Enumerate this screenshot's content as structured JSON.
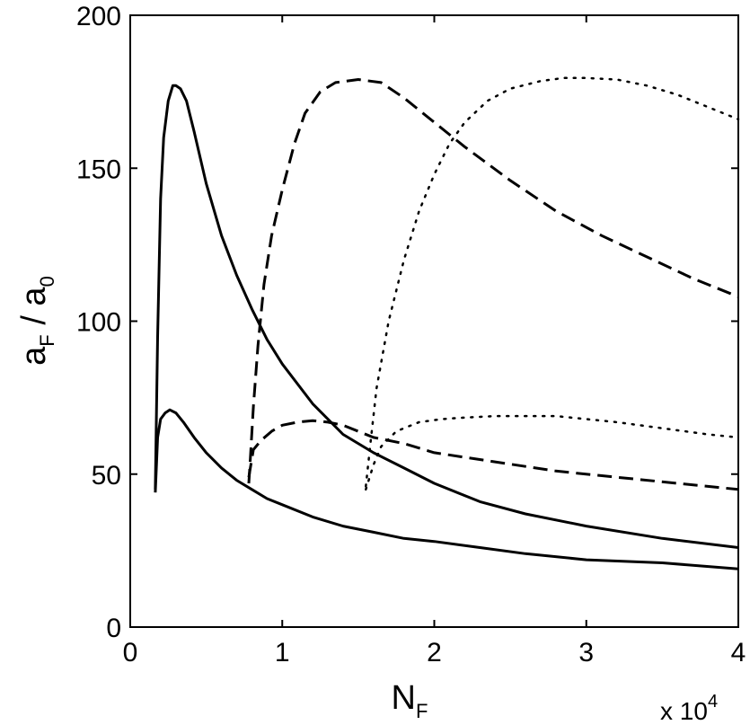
{
  "chart_data": {
    "type": "line",
    "title": "",
    "xlabel": {
      "main": "N",
      "sub": "F"
    },
    "ylabel": {
      "num_main": "a",
      "num_sub": "F",
      "sep": " / ",
      "den_main": "a",
      "den_sub": "0"
    },
    "x_multiplier": {
      "base": "x 10",
      "exp": "4"
    },
    "xlim": [
      0,
      40000
    ],
    "ylim": [
      0,
      200
    ],
    "x_ticks": [
      0,
      10000,
      20000,
      30000,
      40000
    ],
    "x_tick_labels": [
      "0",
      "1",
      "2",
      "3",
      "4"
    ],
    "y_ticks": [
      0,
      50,
      100,
      150,
      200
    ],
    "y_tick_labels": [
      "0",
      "50",
      "100",
      "150",
      "200"
    ],
    "grid": false,
    "line_color": "#000000",
    "series": [
      {
        "style": "solid",
        "x": [
          1650,
          1800,
          2000,
          2200,
          2500,
          2800,
          3000,
          3300,
          3700,
          4200,
          5000,
          6000,
          7000,
          8000,
          9000,
          10000,
          12000,
          14000,
          16000,
          18000,
          20000,
          23000,
          26000,
          30000,
          35000,
          40000
        ],
        "y": [
          45,
          95,
          140,
          160,
          172,
          177,
          177,
          176,
          172,
          162,
          145,
          128,
          115,
          104,
          94,
          86,
          73,
          63,
          57,
          52,
          47,
          41,
          37,
          33,
          29,
          26
        ]
      },
      {
        "style": "solid",
        "x": [
          1650,
          1800,
          2000,
          2300,
          2600,
          3000,
          3500,
          4200,
          5000,
          6000,
          7000,
          8000,
          9000,
          10000,
          12000,
          14000,
          16000,
          18000,
          20000,
          23000,
          26000,
          30000,
          35000,
          40000
        ],
        "y": [
          44,
          62,
          68,
          70,
          71,
          70,
          67,
          62,
          57,
          52,
          48,
          45,
          42,
          40,
          36,
          33,
          31,
          29,
          28,
          26,
          24,
          22,
          21,
          19
        ]
      },
      {
        "style": "dashed",
        "x": [
          7800,
          7900,
          8100,
          8400,
          8800,
          9300,
          10000,
          10800,
          11500,
          12500,
          13500,
          15000,
          16500,
          18000,
          20000,
          22000,
          25000,
          28000,
          31000,
          34000,
          37000,
          40000
        ],
        "y": [
          47,
          55,
          72,
          92,
          112,
          128,
          143,
          158,
          168,
          175,
          178,
          179,
          178,
          173,
          165,
          157,
          146,
          136,
          128,
          121,
          114,
          108
        ]
      },
      {
        "style": "dashed",
        "x": [
          7800,
          8100,
          8600,
          9300,
          10000,
          11000,
          12000,
          13000,
          14000,
          16000,
          18000,
          20000,
          24000,
          28000,
          32000,
          36000,
          40000
        ],
        "y": [
          49,
          58,
          61,
          64,
          66,
          67,
          67.5,
          67,
          66,
          62,
          60,
          57,
          54,
          51,
          49,
          47,
          45
        ]
      },
      {
        "style": "dotted",
        "x": [
          15500,
          15800,
          16200,
          17000,
          18000,
          19000,
          20000,
          21000,
          22000,
          23500,
          25000,
          27000,
          28500,
          30000,
          32000,
          34000,
          36000,
          38000,
          40000
        ],
        "y": [
          46,
          60,
          78,
          100,
          120,
          136,
          148,
          158,
          165,
          172,
          176,
          178.5,
          179.5,
          179.5,
          179,
          177,
          174,
          170,
          166
        ]
      },
      {
        "style": "dotted",
        "x": [
          15500,
          16000,
          16500,
          17500,
          19000,
          20500,
          22000,
          24000,
          26000,
          28000,
          30000,
          32000,
          35000,
          38000,
          40000
        ],
        "y": [
          45,
          53,
          59,
          64,
          67,
          68,
          68.5,
          69,
          69,
          69,
          68,
          67,
          65,
          63,
          62
        ]
      }
    ]
  }
}
